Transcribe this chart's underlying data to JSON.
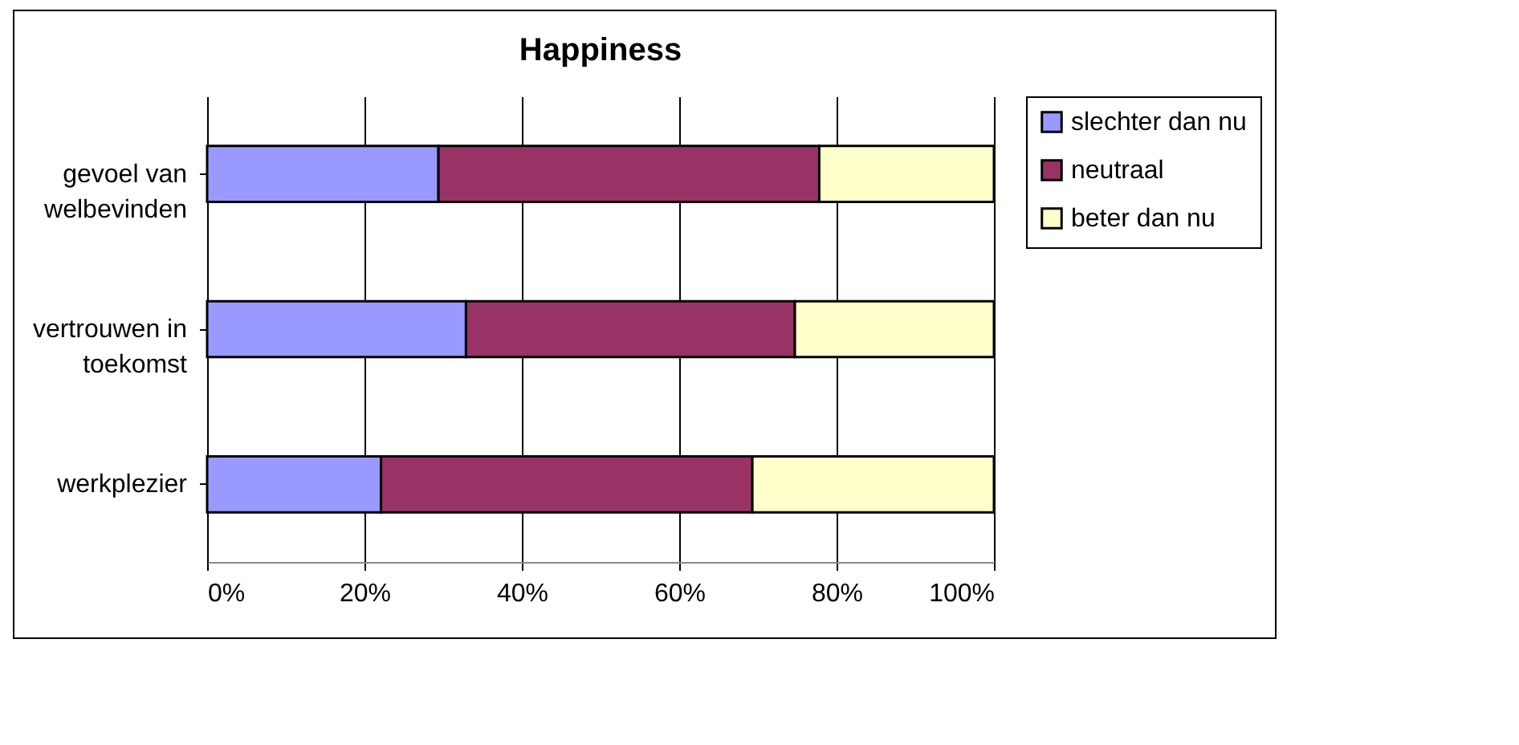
{
  "chart_data": {
    "type": "bar",
    "title": "Happiness",
    "orientation": "horizontal",
    "stacked": true,
    "categories": [
      "gevoel van welbevinden",
      "vertrouwen in toekomst",
      "werkplezier"
    ],
    "series": [
      {
        "name": "slechter dan nu",
        "color": "#9999ff",
        "values": [
          29.4,
          32.9,
          22.1
        ]
      },
      {
        "name": "neutraal",
        "color": "#993366",
        "values": [
          48.4,
          41.8,
          47.2
        ]
      },
      {
        "name": "beter dan nu",
        "color": "#ffffcc",
        "values": [
          22.2,
          25.3,
          30.7
        ]
      }
    ],
    "xlim": [
      0,
      100
    ],
    "xticks": [
      {
        "value": 0,
        "label": "0%"
      },
      {
        "value": 20,
        "label": "20%"
      },
      {
        "value": 40,
        "label": "40%"
      },
      {
        "value": 60,
        "label": "60%"
      },
      {
        "value": 80,
        "label": "80%"
      },
      {
        "value": 100,
        "label": "100%"
      }
    ],
    "grid": "x",
    "legend": "right"
  }
}
